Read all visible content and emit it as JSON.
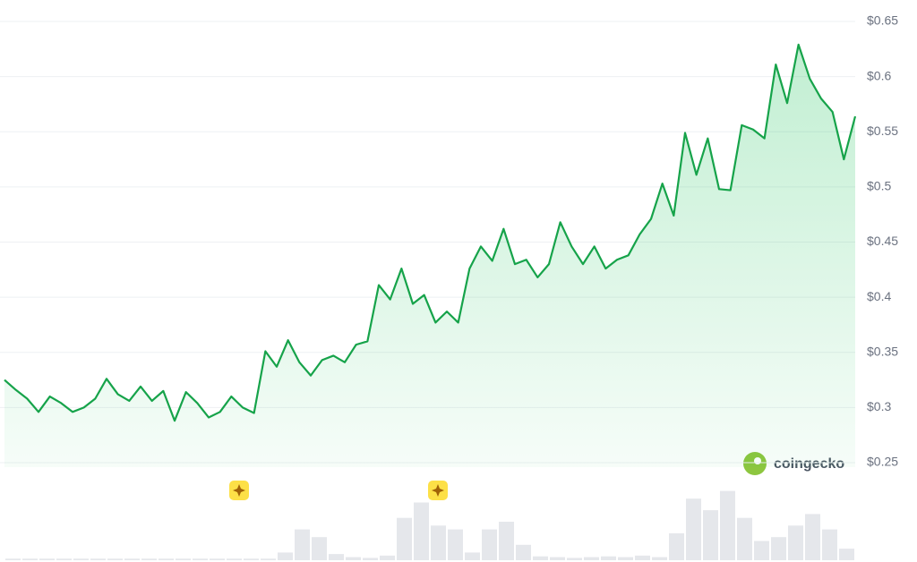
{
  "chart_data": {
    "type": "line",
    "series": [
      {
        "name": "Price",
        "color": "#16a34a",
        "values": [
          0.325,
          0.316,
          0.308,
          0.296,
          0.31,
          0.304,
          0.296,
          0.3,
          0.308,
          0.326,
          0.312,
          0.306,
          0.319,
          0.306,
          0.315,
          0.288,
          0.314,
          0.304,
          0.291,
          0.296,
          0.31,
          0.3,
          0.295,
          0.351,
          0.337,
          0.361,
          0.341,
          0.329,
          0.343,
          0.347,
          0.341,
          0.357,
          0.36,
          0.411,
          0.398,
          0.426,
          0.394,
          0.402,
          0.377,
          0.387,
          0.377,
          0.426,
          0.446,
          0.433,
          0.462,
          0.43,
          0.434,
          0.418,
          0.43,
          0.468,
          0.446,
          0.43,
          0.446,
          0.426,
          0.434,
          0.438,
          0.457,
          0.471,
          0.503,
          0.474,
          0.549,
          0.511,
          0.544,
          0.498,
          0.497,
          0.556,
          0.552,
          0.544,
          0.611,
          0.576,
          0.629,
          0.598,
          0.58,
          0.568,
          0.525,
          0.564
        ]
      },
      {
        "name": "Volume",
        "color": "#e5e7eb",
        "axis": "y2",
        "values": [
          2,
          2,
          2,
          2,
          2,
          2,
          2,
          2,
          2,
          2,
          2,
          2,
          2,
          2,
          2,
          2,
          10,
          40,
          30,
          8,
          4,
          3,
          6,
          55,
          75,
          45,
          40,
          10,
          40,
          50,
          20,
          5,
          4,
          3,
          4,
          5,
          4,
          6,
          4,
          35,
          80,
          65,
          90,
          55,
          25,
          30,
          45,
          60,
          40,
          15
        ]
      }
    ],
    "ylim": [
      0.25,
      0.65
    ],
    "yticks": [
      {
        "value": 0.25,
        "label": "$0.25"
      },
      {
        "value": 0.3,
        "label": "$0.3"
      },
      {
        "value": 0.35,
        "label": "$0.35"
      },
      {
        "value": 0.4,
        "label": "$0.4"
      },
      {
        "value": 0.45,
        "label": "$0.45"
      },
      {
        "value": 0.5,
        "label": "$0.5"
      },
      {
        "value": 0.55,
        "label": "$0.55"
      },
      {
        "value": 0.6,
        "label": "$0.6"
      },
      {
        "value": 0.65,
        "label": "$0.65"
      }
    ],
    "y2lim": [
      0,
      100
    ],
    "grid": true,
    "watermark": "coingecko"
  }
}
